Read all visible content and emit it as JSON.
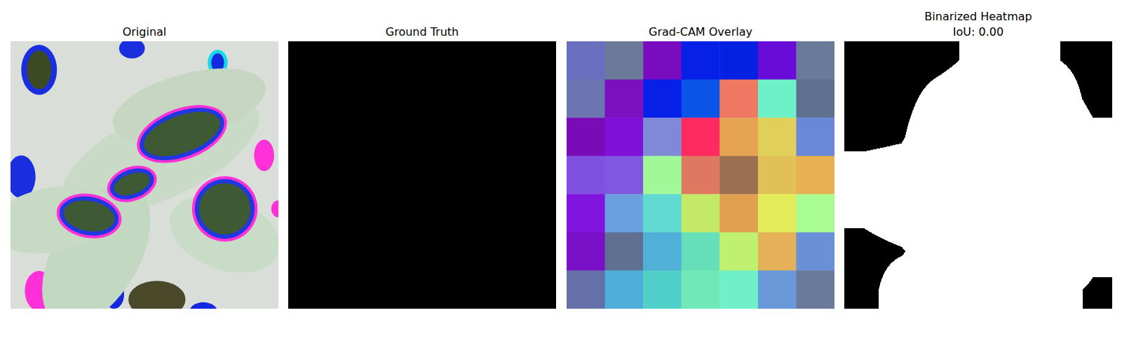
{
  "chart_data": [
    {
      "type": "image",
      "title": "Original",
      "tick_labels": false
    },
    {
      "type": "mask",
      "title": "Ground Truth",
      "cells": [
        [
          0
        ]
      ],
      "tick_labels": false
    },
    {
      "type": "heatmap",
      "title": "Grad-CAM Overlay",
      "tick_labels": false,
      "cells": [
        [
          0.1,
          0.12,
          0.15,
          0.25,
          0.3,
          0.22,
          0.08
        ],
        [
          0.11,
          0.14,
          0.28,
          0.35,
          0.8,
          0.45,
          0.1
        ],
        [
          0.15,
          0.18,
          0.4,
          0.85,
          0.75,
          0.65,
          0.3
        ],
        [
          0.28,
          0.3,
          0.55,
          0.78,
          0.9,
          0.68,
          0.7
        ],
        [
          0.25,
          0.35,
          0.45,
          0.6,
          0.72,
          0.65,
          0.55
        ],
        [
          0.12,
          0.18,
          0.38,
          0.48,
          0.58,
          0.7,
          0.3
        ],
        [
          0.1,
          0.35,
          0.42,
          0.46,
          0.45,
          0.33,
          0.15
        ]
      ],
      "colors": [
        [
          "#6a6fc0",
          "#6c7a9a",
          "#7a0cbf",
          "#0620e8",
          "#0420e0",
          "#6a0cd8",
          "#6a7a9a"
        ],
        [
          "#6c75b0",
          "#7a10c0",
          "#0620e8",
          "#0a55e8",
          "#ee7862",
          "#6ef0c8",
          "#607090"
        ],
        [
          "#7a0cb8",
          "#8010d8",
          "#8088d8",
          "#ff2a60",
          "#e6a452",
          "#e0d05a",
          "#6a88d8"
        ],
        [
          "#8050e0",
          "#8058e0",
          "#a0f898",
          "#de7860",
          "#9a7050",
          "#e2c058",
          "#e8b050"
        ],
        [
          "#8015e0",
          "#6aa0e0",
          "#60dad0",
          "#c4e868",
          "#e0a050",
          "#e4ec5c",
          "#a8fc90"
        ],
        [
          "#7a10c8",
          "#607090",
          "#50b0d8",
          "#66e0b8",
          "#c0f070",
          "#e4b058",
          "#6a90d8"
        ],
        [
          "#6670a8",
          "#50acd8",
          "#50d0c8",
          "#70e8b8",
          "#70f0c8",
          "#6898d8",
          "#6a7a9a"
        ]
      ]
    },
    {
      "type": "mask",
      "title": "Binarized Heatmap",
      "subtitle": "IoU: 0.00",
      "threshold": 0.2,
      "tick_labels": false
    }
  ]
}
